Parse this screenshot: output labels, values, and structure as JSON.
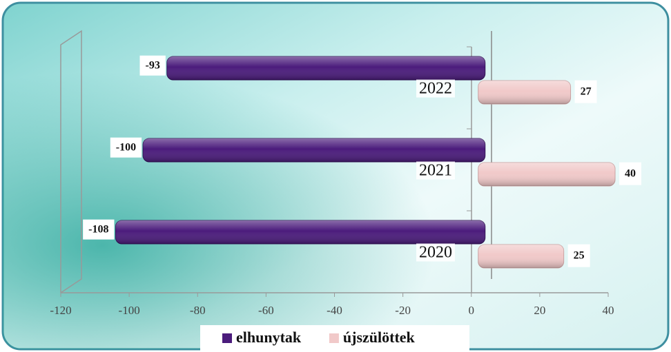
{
  "chart_data": {
    "type": "bar",
    "orientation": "horizontal",
    "categories": [
      "2022",
      "2021",
      "2020"
    ],
    "series": [
      {
        "name": "elhunytak",
        "color": "#4b1c7c",
        "values": [
          -93,
          -100,
          -108
        ]
      },
      {
        "name": "újszülöttek",
        "color": "#f1c9c9",
        "values": [
          27,
          40,
          25
        ]
      }
    ],
    "xlim": [
      -120,
      40
    ],
    "xticks": [
      -120,
      -100,
      -80,
      -60,
      -40,
      -20,
      0,
      20,
      40
    ],
    "legend": "bottom"
  }
}
